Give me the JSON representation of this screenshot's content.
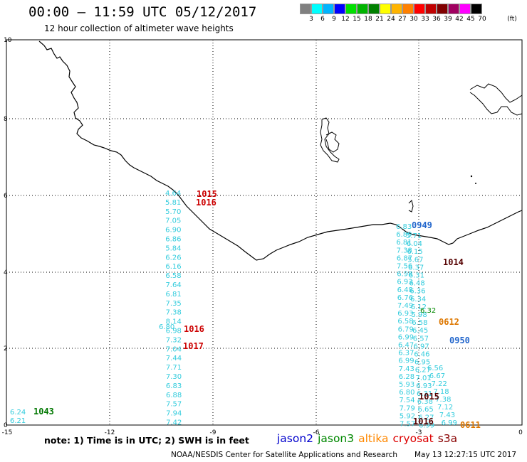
{
  "header": {
    "title": "00:00 – 11:59 UTC 05/12/2017",
    "subtitle": "12 hour collection of altimeter wave heights"
  },
  "color_scale": {
    "unit": "(ft)",
    "colors": [
      "#808080",
      "#00ffff",
      "#00b4ff",
      "#0000ff",
      "#00e000",
      "#00b400",
      "#008000",
      "#ffff00",
      "#ffb400",
      "#ff8000",
      "#ff0000",
      "#c00000",
      "#800000",
      "#a00060",
      "#ff00ff",
      "#000000"
    ],
    "labels": [
      "3",
      "6",
      "9",
      "12",
      "15",
      "18",
      "21",
      "24",
      "27",
      "30",
      "33",
      "36",
      "39",
      "42",
      "45",
      "70"
    ]
  },
  "map": {
    "x_ticks": [
      "-15",
      "-12",
      "-9",
      "-6",
      "-3",
      "0"
    ],
    "y_ticks": [
      "0",
      "2",
      "4",
      "6",
      "8",
      "10"
    ],
    "track_colors": {
      "jason3": "#33ccdd",
      "jason2": "#2266cc",
      "altika": "#dd7700",
      "cryosat": "#cc0000",
      "sentinel": "#550000",
      "green": "#007700"
    },
    "track_left": [
      "4.64",
      "5.81",
      "5.70",
      "7.05",
      "6.90",
      "6.86",
      "5.84",
      "6.26",
      "6.16",
      "6.58",
      "7.64",
      "6.81",
      "7.35",
      "7.38",
      "8.14",
      "6.98",
      "7.32",
      "7.04",
      "7.44",
      "7.71",
      "7.30",
      "6.83",
      "6.88",
      "7.57",
      "7.94",
      "7.42"
    ],
    "track_left_overlap": "6.80",
    "track_right_a": [
      "6.83",
      "6.89",
      "6.81",
      "7.38",
      "6.87",
      "7.56",
      "6.98",
      "6.93",
      "6.48",
      "6.76",
      "7.49",
      "6.93",
      "6.58",
      "6.79",
      "6.99",
      "6.47",
      "6.37",
      "6.99",
      "7.43",
      "6.28",
      "5.93",
      "6.80",
      "7.54",
      "7.79",
      "5.92",
      "7.57"
    ],
    "track_right_b": [
      "5.71",
      "6.04",
      "6.15",
      "5.67",
      "6.37",
      "6.31",
      "6.48",
      "6.36",
      "6.34",
      "6.12",
      "5.98",
      "6.58",
      "6.45",
      "6.57",
      "6.97",
      "6.46",
      "6.95",
      "6.27",
      "7.01",
      "6.93",
      "6.31",
      "6.38",
      "6.65",
      "6.27",
      "6.99"
    ],
    "track_right_b_sub": [
      "6.56",
      "6.67",
      "7.22",
      "7.18",
      "7.38",
      "7.12",
      "7.43",
      "6.99"
    ],
    "track_right_b_small": "6.32",
    "track_far_left": [
      "6.24",
      "6.21"
    ],
    "pass_labels": [
      {
        "text": "1015",
        "color": "cryosat"
      },
      {
        "text": "1016",
        "color": "cryosat"
      },
      {
        "text": "1016",
        "color": "cryosat"
      },
      {
        "text": "1017",
        "color": "cryosat"
      },
      {
        "text": "0949",
        "color": "jason2"
      },
      {
        "text": "1014",
        "color": "sentinel"
      },
      {
        "text": "0612",
        "color": "altika"
      },
      {
        "text": "0950",
        "color": "jason2"
      },
      {
        "text": "1015",
        "color": "sentinel"
      },
      {
        "text": "1016",
        "color": "sentinel"
      },
      {
        "text": "0611",
        "color": "altika"
      },
      {
        "text": "1043",
        "color": "green"
      }
    ]
  },
  "footer": {
    "note": "note:  1) Time is in UTC;  2) SWH is in feet",
    "satellites": [
      {
        "name": "jason2",
        "color": "#0000cc"
      },
      {
        "name": "jason3",
        "color": "#008800"
      },
      {
        "name": "altika",
        "color": "#ff8800"
      },
      {
        "name": "cryosat",
        "color": "#dd0000"
      },
      {
        "name": "s3a",
        "color": "#880000"
      }
    ],
    "credit": "NOAA/NESDIS Center for Satellite Applications and Research",
    "timestamp": "May 13 12:27:15 UTC 2017"
  }
}
